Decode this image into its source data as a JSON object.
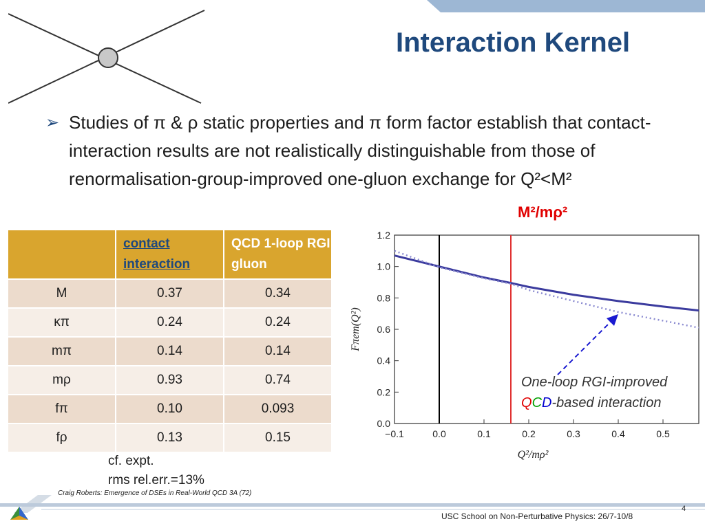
{
  "slide": {
    "title": "Interaction Kernel",
    "bullet_text": "Studies of π & ρ static properties and π form factor establish that contact-interaction results are not realistically distinguishable from those of renormalisation-group-improved one-gluon exchange for Q²<M²",
    "m_ratio_label": "M²/mρ²",
    "cf_line1": "cf. expt.",
    "cf_line2": "rms rel.err.=13%",
    "annotation_line1": "One-loop RGI-improved",
    "annotation_q": "Q",
    "annotation_c": "C",
    "annotation_d": "D",
    "annotation_rest": "-based  interaction",
    "footer_credit": "Craig Roberts: Emergence of DSEs in Real-World QCD 3A (72)",
    "footer_conference": "USC School on Non-Perturbative Physics: 26/7-10/8",
    "page_number": "4"
  },
  "table": {
    "headers": [
      "",
      "contact interaction",
      "QCD 1-loop RGI gluon"
    ],
    "rows": [
      {
        "label": "M",
        "contact": "0.37",
        "qcd": "0.34"
      },
      {
        "label": "κπ",
        "contact": "0.24",
        "qcd": "0.24"
      },
      {
        "label": "mπ",
        "contact": "0.14",
        "qcd": "0.14"
      },
      {
        "label": "mρ",
        "contact": "0.93",
        "qcd": "0.74"
      },
      {
        "label": "fπ",
        "contact": "0.10",
        "qcd": "0.093"
      },
      {
        "label": "fρ",
        "contact": "0.13",
        "qcd": "0.15"
      }
    ]
  },
  "chart_data": {
    "type": "line",
    "xlabel": "Q²/mρ²",
    "ylabel": "Fπem(Q²)",
    "xlim": [
      -0.1,
      0.58
    ],
    "ylim": [
      0.0,
      1.2
    ],
    "xticks": [
      "−0.1",
      "0.0",
      "0.1",
      "0.2",
      "0.3",
      "0.4",
      "0.5"
    ],
    "yticks": [
      "0.0",
      "0.2",
      "0.4",
      "0.6",
      "0.8",
      "1.0",
      "1.2"
    ],
    "vertical_lines": [
      {
        "x": 0.0,
        "color": "#000000"
      },
      {
        "x": 0.16,
        "color": "#e03030"
      }
    ],
    "series": [
      {
        "style": "solid",
        "color": "#3b3b9e",
        "x": [
          -0.1,
          0.0,
          0.1,
          0.16,
          0.2,
          0.3,
          0.4,
          0.5,
          0.58
        ],
        "y": [
          1.07,
          1.0,
          0.93,
          0.895,
          0.87,
          0.82,
          0.78,
          0.745,
          0.72
        ]
      },
      {
        "style": "dotted",
        "color": "#8a8ad0",
        "x": [
          -0.1,
          0.0,
          0.1,
          0.16,
          0.2,
          0.3,
          0.4,
          0.5,
          0.58
        ],
        "y": [
          1.1,
          0.995,
          0.925,
          0.89,
          0.85,
          0.78,
          0.71,
          0.655,
          0.61
        ]
      }
    ]
  }
}
